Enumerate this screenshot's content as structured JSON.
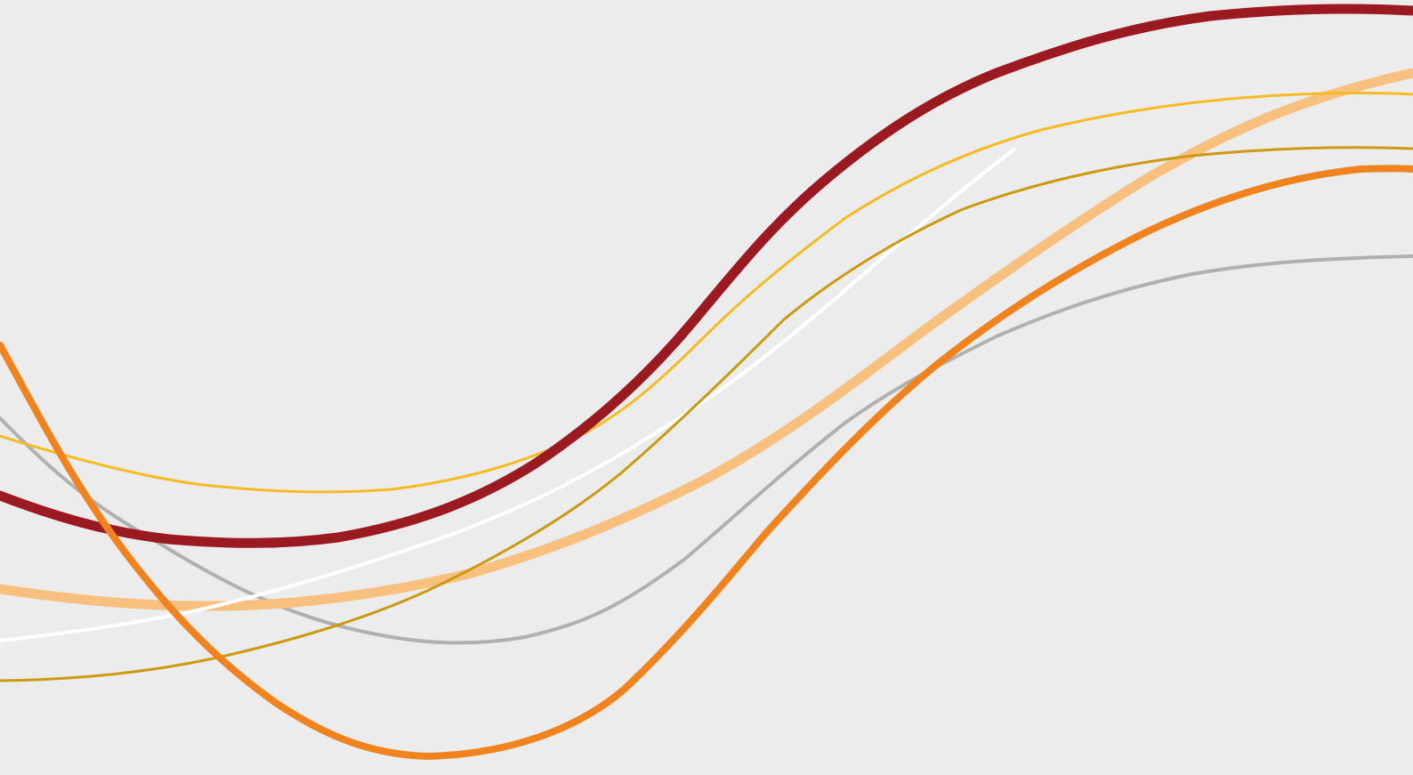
{
  "colors": {
    "background": "#ececec",
    "dark_red": "#9b1a22",
    "orange": "#f0831e",
    "light_orange": "#f8c07e",
    "yellow": "#f6bb22",
    "gold": "#cc9a10",
    "gray": "#b0b0ae",
    "white": "#ffffff"
  },
  "ribbons": [
    {
      "name": "dark-red",
      "color": "#9b1a22"
    },
    {
      "name": "orange",
      "color": "#f0831e"
    },
    {
      "name": "light-orange",
      "color": "#f8c07e"
    },
    {
      "name": "yellow",
      "color": "#f6bb22"
    },
    {
      "name": "gold",
      "color": "#cc9a10"
    },
    {
      "name": "gray",
      "color": "#b0b0ae"
    },
    {
      "name": "white",
      "color": "#ffffff"
    }
  ]
}
